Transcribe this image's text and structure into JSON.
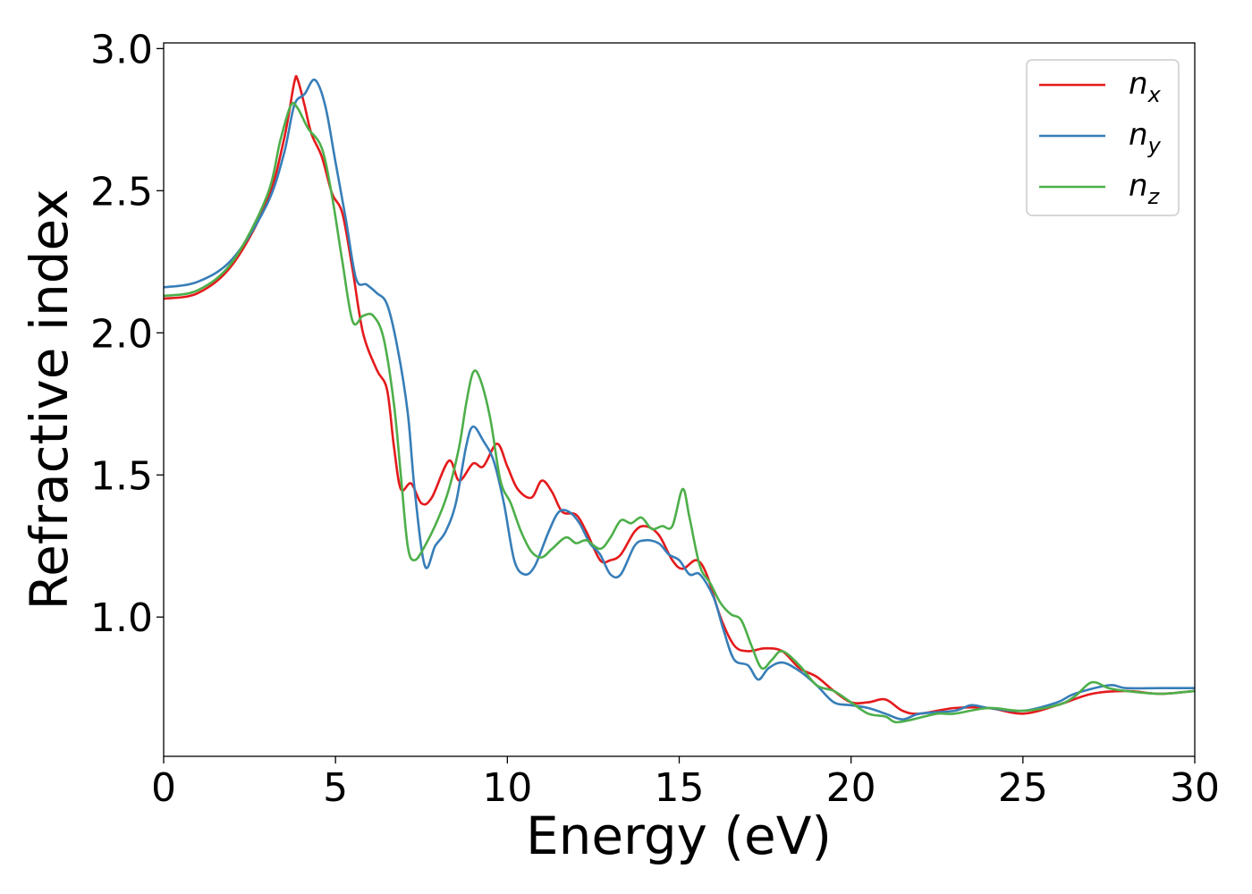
{
  "chart_data": {
    "type": "line",
    "title": "",
    "xlabel": "Energy (eV)",
    "ylabel": "Refractive index",
    "xlim": [
      0,
      30
    ],
    "ylim": [
      0.51,
      3.02
    ],
    "xticks": [
      "0",
      "5",
      "10",
      "15",
      "20",
      "25",
      "30"
    ],
    "yticks": [
      "1.0",
      "1.5",
      "2.0",
      "2.5",
      "3.0"
    ],
    "grid": false,
    "legend_position": "top-right",
    "series": [
      {
        "name": "n_x",
        "label_base": "n",
        "label_sub": "x",
        "color": "#e41a1c",
        "points": [
          [
            0,
            2.12
          ],
          [
            1,
            2.14
          ],
          [
            2,
            2.24
          ],
          [
            3,
            2.46
          ],
          [
            3.5,
            2.68
          ],
          [
            3.8,
            2.88
          ],
          [
            3.9,
            2.89
          ],
          [
            4.1,
            2.8
          ],
          [
            4.3,
            2.7
          ],
          [
            4.6,
            2.62
          ],
          [
            4.9,
            2.49
          ],
          [
            5.2,
            2.42
          ],
          [
            5.5,
            2.22
          ],
          [
            5.8,
            2.0
          ],
          [
            6.2,
            1.87
          ],
          [
            6.5,
            1.8
          ],
          [
            6.7,
            1.6
          ],
          [
            6.9,
            1.45
          ],
          [
            7.2,
            1.47
          ],
          [
            7.5,
            1.4
          ],
          [
            7.8,
            1.42
          ],
          [
            8.3,
            1.55
          ],
          [
            8.6,
            1.48
          ],
          [
            9.0,
            1.54
          ],
          [
            9.3,
            1.53
          ],
          [
            9.7,
            1.61
          ],
          [
            10.0,
            1.53
          ],
          [
            10.3,
            1.45
          ],
          [
            10.7,
            1.42
          ],
          [
            11.0,
            1.48
          ],
          [
            11.3,
            1.44
          ],
          [
            11.6,
            1.37
          ],
          [
            12.0,
            1.36
          ],
          [
            12.3,
            1.3
          ],
          [
            12.7,
            1.2
          ],
          [
            13.0,
            1.2
          ],
          [
            13.3,
            1.22
          ],
          [
            13.7,
            1.3
          ],
          [
            14.0,
            1.32
          ],
          [
            14.4,
            1.29
          ],
          [
            14.8,
            1.2
          ],
          [
            15.1,
            1.17
          ],
          [
            15.5,
            1.2
          ],
          [
            15.8,
            1.15
          ],
          [
            16.2,
            1.0
          ],
          [
            16.6,
            0.9
          ],
          [
            17.0,
            0.88
          ],
          [
            17.5,
            0.89
          ],
          [
            18.0,
            0.88
          ],
          [
            18.5,
            0.82
          ],
          [
            19.0,
            0.79
          ],
          [
            19.5,
            0.74
          ],
          [
            20.0,
            0.7
          ],
          [
            20.5,
            0.7
          ],
          [
            21.0,
            0.71
          ],
          [
            21.5,
            0.67
          ],
          [
            22.0,
            0.66
          ],
          [
            23.0,
            0.68
          ],
          [
            24.0,
            0.68
          ],
          [
            25.0,
            0.66
          ],
          [
            26.0,
            0.69
          ],
          [
            27.0,
            0.73
          ],
          [
            28.0,
            0.74
          ],
          [
            29.0,
            0.73
          ],
          [
            30.0,
            0.74
          ]
        ]
      },
      {
        "name": "n_y",
        "label_base": "n",
        "label_sub": "y",
        "color": "#377eb8",
        "points": [
          [
            0,
            2.16
          ],
          [
            1,
            2.18
          ],
          [
            2,
            2.26
          ],
          [
            3,
            2.45
          ],
          [
            3.5,
            2.63
          ],
          [
            3.8,
            2.8
          ],
          [
            4.1,
            2.84
          ],
          [
            4.4,
            2.89
          ],
          [
            4.7,
            2.8
          ],
          [
            5.0,
            2.6
          ],
          [
            5.3,
            2.4
          ],
          [
            5.6,
            2.19
          ],
          [
            5.9,
            2.17
          ],
          [
            6.2,
            2.14
          ],
          [
            6.5,
            2.1
          ],
          [
            6.8,
            1.95
          ],
          [
            7.1,
            1.72
          ],
          [
            7.3,
            1.45
          ],
          [
            7.6,
            1.18
          ],
          [
            7.9,
            1.25
          ],
          [
            8.2,
            1.3
          ],
          [
            8.5,
            1.4
          ],
          [
            8.8,
            1.6
          ],
          [
            9.0,
            1.67
          ],
          [
            9.3,
            1.62
          ],
          [
            9.6,
            1.55
          ],
          [
            9.9,
            1.4
          ],
          [
            10.2,
            1.2
          ],
          [
            10.5,
            1.15
          ],
          [
            10.8,
            1.18
          ],
          [
            11.2,
            1.3
          ],
          [
            11.5,
            1.37
          ],
          [
            11.8,
            1.37
          ],
          [
            12.1,
            1.33
          ],
          [
            12.4,
            1.26
          ],
          [
            12.7,
            1.22
          ],
          [
            13.0,
            1.15
          ],
          [
            13.3,
            1.15
          ],
          [
            13.7,
            1.25
          ],
          [
            14.0,
            1.27
          ],
          [
            14.4,
            1.26
          ],
          [
            14.7,
            1.22
          ],
          [
            15.0,
            1.2
          ],
          [
            15.3,
            1.15
          ],
          [
            15.6,
            1.15
          ],
          [
            16.0,
            1.07
          ],
          [
            16.3,
            0.95
          ],
          [
            16.6,
            0.85
          ],
          [
            17.0,
            0.83
          ],
          [
            17.3,
            0.78
          ],
          [
            17.6,
            0.82
          ],
          [
            18.0,
            0.84
          ],
          [
            18.5,
            0.81
          ],
          [
            19.0,
            0.76
          ],
          [
            19.5,
            0.7
          ],
          [
            20.0,
            0.69
          ],
          [
            20.5,
            0.68
          ],
          [
            21.0,
            0.66
          ],
          [
            21.5,
            0.64
          ],
          [
            22.0,
            0.66
          ],
          [
            23.0,
            0.67
          ],
          [
            23.5,
            0.69
          ],
          [
            24.0,
            0.68
          ],
          [
            25.0,
            0.67
          ],
          [
            26.0,
            0.7
          ],
          [
            26.5,
            0.73
          ],
          [
            27.5,
            0.76
          ],
          [
            28.0,
            0.75
          ],
          [
            29.0,
            0.75
          ],
          [
            30.0,
            0.75
          ]
        ]
      },
      {
        "name": "n_z",
        "label_base": "n",
        "label_sub": "z",
        "color": "#4daf4a",
        "points": [
          [
            0,
            2.13
          ],
          [
            1,
            2.15
          ],
          [
            2,
            2.25
          ],
          [
            3,
            2.48
          ],
          [
            3.4,
            2.68
          ],
          [
            3.7,
            2.8
          ],
          [
            3.9,
            2.79
          ],
          [
            4.2,
            2.72
          ],
          [
            4.6,
            2.65
          ],
          [
            4.9,
            2.48
          ],
          [
            5.2,
            2.25
          ],
          [
            5.5,
            2.04
          ],
          [
            5.8,
            2.06
          ],
          [
            6.1,
            2.06
          ],
          [
            6.4,
            1.98
          ],
          [
            6.7,
            1.75
          ],
          [
            6.9,
            1.5
          ],
          [
            7.1,
            1.25
          ],
          [
            7.3,
            1.2
          ],
          [
            7.6,
            1.25
          ],
          [
            8.0,
            1.35
          ],
          [
            8.3,
            1.45
          ],
          [
            8.6,
            1.6
          ],
          [
            8.8,
            1.75
          ],
          [
            9.0,
            1.86
          ],
          [
            9.2,
            1.84
          ],
          [
            9.5,
            1.7
          ],
          [
            9.8,
            1.48
          ],
          [
            10.1,
            1.4
          ],
          [
            10.4,
            1.3
          ],
          [
            10.7,
            1.23
          ],
          [
            11.0,
            1.21
          ],
          [
            11.3,
            1.24
          ],
          [
            11.7,
            1.28
          ],
          [
            12.0,
            1.26
          ],
          [
            12.3,
            1.27
          ],
          [
            12.7,
            1.24
          ],
          [
            13.0,
            1.28
          ],
          [
            13.3,
            1.34
          ],
          [
            13.6,
            1.33
          ],
          [
            13.9,
            1.35
          ],
          [
            14.2,
            1.31
          ],
          [
            14.5,
            1.32
          ],
          [
            14.8,
            1.32
          ],
          [
            15.1,
            1.45
          ],
          [
            15.3,
            1.35
          ],
          [
            15.6,
            1.18
          ],
          [
            15.9,
            1.12
          ],
          [
            16.2,
            1.05
          ],
          [
            16.5,
            1.01
          ],
          [
            16.8,
            0.99
          ],
          [
            17.1,
            0.9
          ],
          [
            17.4,
            0.82
          ],
          [
            17.7,
            0.85
          ],
          [
            18.0,
            0.88
          ],
          [
            18.5,
            0.83
          ],
          [
            19.0,
            0.76
          ],
          [
            19.5,
            0.74
          ],
          [
            20.0,
            0.7
          ],
          [
            20.5,
            0.66
          ],
          [
            21.0,
            0.65
          ],
          [
            21.3,
            0.63
          ],
          [
            21.8,
            0.64
          ],
          [
            22.5,
            0.66
          ],
          [
            23.0,
            0.66
          ],
          [
            24.0,
            0.68
          ],
          [
            25.0,
            0.67
          ],
          [
            26.0,
            0.69
          ],
          [
            26.5,
            0.72
          ],
          [
            27.0,
            0.77
          ],
          [
            27.5,
            0.75
          ],
          [
            28.0,
            0.74
          ],
          [
            29.0,
            0.73
          ],
          [
            30.0,
            0.74
          ]
        ]
      }
    ]
  }
}
